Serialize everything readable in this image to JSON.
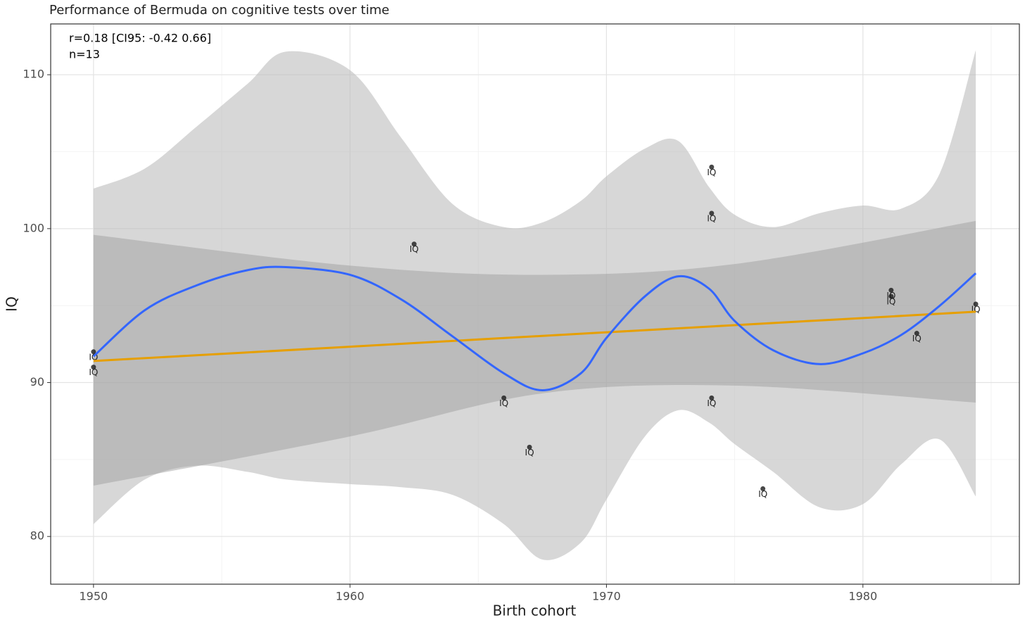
{
  "chart_data": {
    "type": "scatter",
    "title": "Performance of Bermuda on cognitive tests over time",
    "xlabel": "Birth cohort",
    "ylabel": "IQ",
    "annotations": [
      "r=0.18 [CI95: -0.42 0.66]",
      "n=13"
    ],
    "point_label": "IQ",
    "point_color": "#1a1a1a",
    "x": [
      1950,
      1950,
      1962.5,
      1966,
      1967,
      1974.1,
      1974.1,
      1974.1,
      1976.1,
      1981.1,
      1981.1,
      1982.1,
      1984.4
    ],
    "values": [
      92,
      91,
      99,
      89,
      85.8,
      104,
      101,
      89,
      83.1,
      96,
      95.6,
      93.2,
      95.1
    ],
    "smooth": {
      "color": "#3366ff",
      "band_color": "#bdbdbd",
      "x": [
        1950,
        1952,
        1954,
        1956,
        1957.5,
        1960,
        1962,
        1964,
        1966,
        1967.5,
        1969,
        1970,
        1971.5,
        1972.8,
        1974,
        1975,
        1976.5,
        1978.3,
        1980,
        1981.5,
        1983,
        1984.4
      ],
      "values": [
        91.7,
        94.7,
        96.3,
        97.3,
        97.5,
        97.0,
        95.4,
        93.0,
        90.6,
        89.5,
        90.6,
        92.9,
        95.6,
        96.9,
        96.1,
        94.0,
        92.1,
        91.2,
        91.9,
        93.1,
        95.0,
        97.1
      ],
      "upper": [
        102.6,
        103.9,
        106.6,
        109.4,
        111.5,
        110.3,
        105.9,
        101.6,
        100.1,
        100.4,
        101.8,
        103.4,
        105.2,
        105.7,
        102.7,
        100.9,
        100.1,
        101.0,
        101.5,
        101.3,
        103.6,
        111.6
      ],
      "lower": [
        80.8,
        83.7,
        84.6,
        84.2,
        83.7,
        83.4,
        83.2,
        82.7,
        80.8,
        78.5,
        79.6,
        82.4,
        86.5,
        88.2,
        87.4,
        86.0,
        84.2,
        81.9,
        82.1,
        84.7,
        86.3,
        82.6
      ]
    },
    "linear": {
      "color": "#e69f00",
      "band_color": "#999999",
      "x": [
        1950,
        1960,
        1967.5,
        1975,
        1984.4
      ],
      "values": [
        91.4,
        92.33,
        93.03,
        93.73,
        94.6
      ],
      "upper": [
        99.6,
        97.6,
        97.0,
        97.7,
        100.5
      ],
      "lower": [
        83.3,
        86.5,
        89.3,
        89.8,
        88.7
      ]
    },
    "xlim": [
      1948.33,
      1986.1
    ],
    "ylim": [
      76.9,
      113.3
    ],
    "xticks": [
      1950,
      1960,
      1970,
      1980
    ],
    "yticks": [
      80,
      90,
      100,
      110
    ],
    "xminorticks": [
      1955,
      1965,
      1975,
      1985
    ],
    "yminorticks": [
      85,
      95,
      105
    ],
    "grid": true
  }
}
